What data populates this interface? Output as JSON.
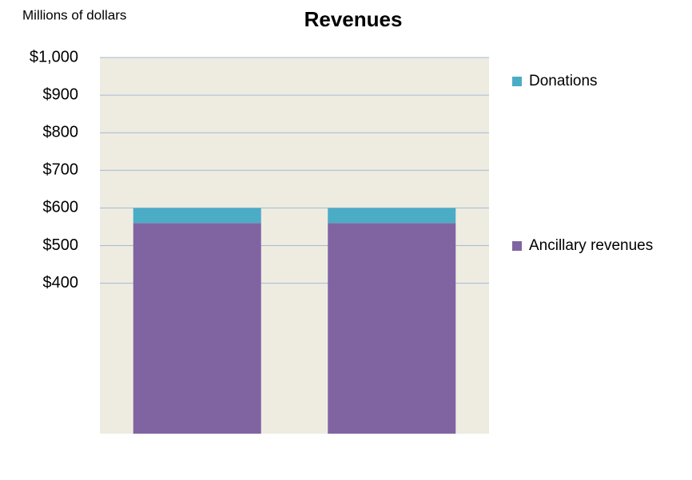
{
  "chart_data": {
    "type": "bar",
    "stacked": true,
    "title": "Revenues",
    "y_axis_label": "Millions of dollars",
    "categories": [
      null,
      null
    ],
    "series": [
      {
        "name": "Ancillary revenues",
        "color": "#8064a2",
        "values": [
          560,
          560
        ]
      },
      {
        "name": "Donations",
        "color": "#4bacc6",
        "values": [
          40,
          40
        ]
      }
    ],
    "ylim": [
      0,
      1000
    ],
    "yticks": [
      {
        "value": 400,
        "label": "$400"
      },
      {
        "value": 500,
        "label": "$500"
      },
      {
        "value": 600,
        "label": "$600"
      },
      {
        "value": 700,
        "label": "$700"
      },
      {
        "value": 800,
        "label": "$800"
      },
      {
        "value": 900,
        "label": "$900"
      },
      {
        "value": 1000,
        "label": "$1,000"
      }
    ],
    "grid": true,
    "legend": "right"
  }
}
